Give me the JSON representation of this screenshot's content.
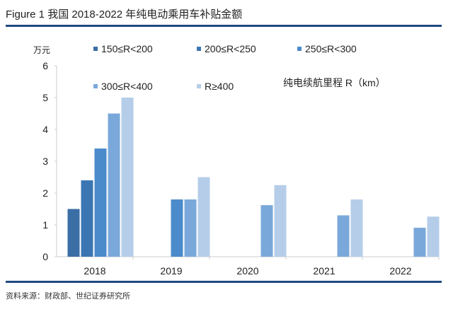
{
  "figure_title": "Figure 1  我国 2018-2022 年纯电动乘用车补贴金额",
  "source": "资料来源：财政部、世纪证券研究所",
  "chart_data": {
    "type": "bar",
    "title": "我国 2018-2022 年纯电动乘用车补贴金额",
    "ylabel": "万元",
    "legend_title": "纯电续航里程 R（km）",
    "legend_position": "top",
    "categories": [
      "2018",
      "2019",
      "2020",
      "2021",
      "2022"
    ],
    "ylim": [
      0,
      6
    ],
    "yticks": [
      0,
      1,
      2,
      3,
      4,
      5,
      6
    ],
    "grid": false,
    "series": [
      {
        "name": "150≤R<200",
        "color": "#3a6ea5",
        "values": [
          1.5,
          0,
          0,
          0,
          0
        ]
      },
      {
        "name": "200≤R<250",
        "color": "#3b76b3",
        "values": [
          2.4,
          0,
          0,
          0,
          0
        ]
      },
      {
        "name": "250≤R<300",
        "color": "#4b8bcb",
        "values": [
          3.4,
          1.8,
          0,
          0,
          0
        ]
      },
      {
        "name": "300≤R<400",
        "color": "#7aa8da",
        "values": [
          4.5,
          1.8,
          1.62,
          1.3,
          0.91
        ]
      },
      {
        "name": "R≥400",
        "color": "#b5cde9",
        "values": [
          5.0,
          2.5,
          2.25,
          1.8,
          1.26
        ]
      }
    ]
  }
}
